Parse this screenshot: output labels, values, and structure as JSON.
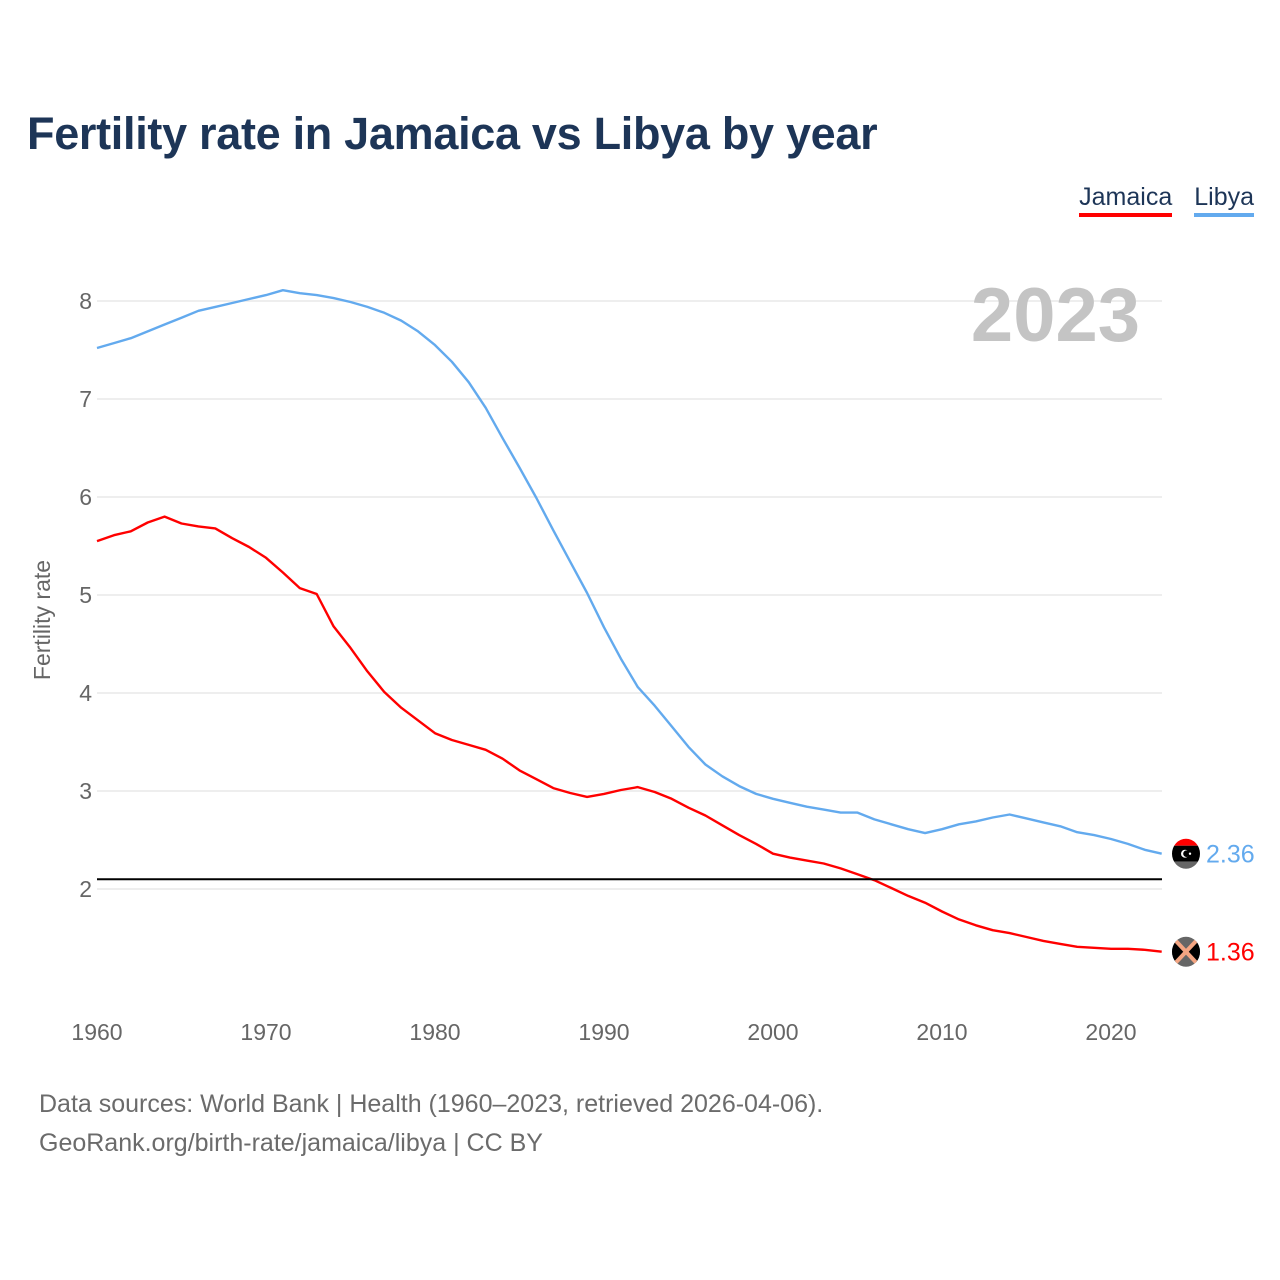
{
  "title": "Fertility rate in Jamaica vs Libya by year",
  "legend": [
    {
      "label": "Jamaica",
      "color": "#ff0000"
    },
    {
      "label": "Libya",
      "color": "#63aaee"
    }
  ],
  "footer": {
    "line1": "Data sources: World Bank | Health (1960–2023, retrieved 2026-04-06).",
    "line2": "GeoRank.org/birth-rate/jamaica/libya | CC BY"
  },
  "chart_data": {
    "type": "line",
    "title": "Fertility rate in Jamaica vs Libya by year",
    "xlabel": "",
    "ylabel": "Fertility rate",
    "current_year_label": "2023",
    "xlim": [
      1960,
      2023
    ],
    "ylim": [
      1.0,
      8.4
    ],
    "x_ticks": [
      1960,
      1970,
      1980,
      1990,
      2000,
      2010,
      2020
    ],
    "y_ticks": [
      2,
      3,
      4,
      5,
      6,
      7,
      8
    ],
    "grid": true,
    "legend_position": "top-right",
    "reference_line": {
      "value": 2.1,
      "color": "#000000"
    },
    "x": [
      1960,
      1961,
      1962,
      1963,
      1964,
      1965,
      1966,
      1967,
      1968,
      1969,
      1970,
      1971,
      1972,
      1973,
      1974,
      1975,
      1976,
      1977,
      1978,
      1979,
      1980,
      1981,
      1982,
      1983,
      1984,
      1985,
      1986,
      1987,
      1988,
      1989,
      1990,
      1991,
      1992,
      1993,
      1994,
      1995,
      1996,
      1997,
      1998,
      1999,
      2000,
      2001,
      2002,
      2003,
      2004,
      2005,
      2006,
      2007,
      2008,
      2009,
      2010,
      2011,
      2012,
      2013,
      2014,
      2015,
      2016,
      2017,
      2018,
      2019,
      2020,
      2021,
      2022,
      2023
    ],
    "series": [
      {
        "name": "Jamaica",
        "color": "#ff0000",
        "end_label": "1.36",
        "values": [
          5.55,
          5.61,
          5.65,
          5.74,
          5.8,
          5.73,
          5.7,
          5.68,
          5.58,
          5.49,
          5.38,
          5.23,
          5.07,
          5.01,
          4.68,
          4.46,
          4.22,
          4.01,
          3.85,
          3.72,
          3.59,
          3.52,
          3.47,
          3.42,
          3.33,
          3.21,
          3.12,
          3.03,
          2.98,
          2.94,
          2.97,
          3.01,
          3.04,
          2.99,
          2.92,
          2.83,
          2.75,
          2.65,
          2.55,
          2.46,
          2.36,
          2.32,
          2.29,
          2.26,
          2.21,
          2.15,
          2.09,
          2.01,
          1.93,
          1.86,
          1.77,
          1.69,
          1.63,
          1.58,
          1.55,
          1.51,
          1.47,
          1.44,
          1.41,
          1.4,
          1.39,
          1.39,
          1.38,
          1.36
        ]
      },
      {
        "name": "Libya",
        "color": "#63aaee",
        "end_label": "2.36",
        "values": [
          7.52,
          7.57,
          7.62,
          7.69,
          7.76,
          7.83,
          7.9,
          7.94,
          7.98,
          8.02,
          8.06,
          8.11,
          8.08,
          8.06,
          8.03,
          7.99,
          7.94,
          7.88,
          7.8,
          7.69,
          7.55,
          7.38,
          7.17,
          6.91,
          6.6,
          6.3,
          5.99,
          5.66,
          5.34,
          5.02,
          4.67,
          4.35,
          4.06,
          3.87,
          3.66,
          3.45,
          3.27,
          3.15,
          3.05,
          2.97,
          2.92,
          2.88,
          2.84,
          2.81,
          2.78,
          2.78,
          2.71,
          2.66,
          2.61,
          2.57,
          2.61,
          2.66,
          2.69,
          2.73,
          2.76,
          2.72,
          2.68,
          2.64,
          2.58,
          2.55,
          2.51,
          2.46,
          2.4,
          2.36
        ]
      }
    ]
  }
}
